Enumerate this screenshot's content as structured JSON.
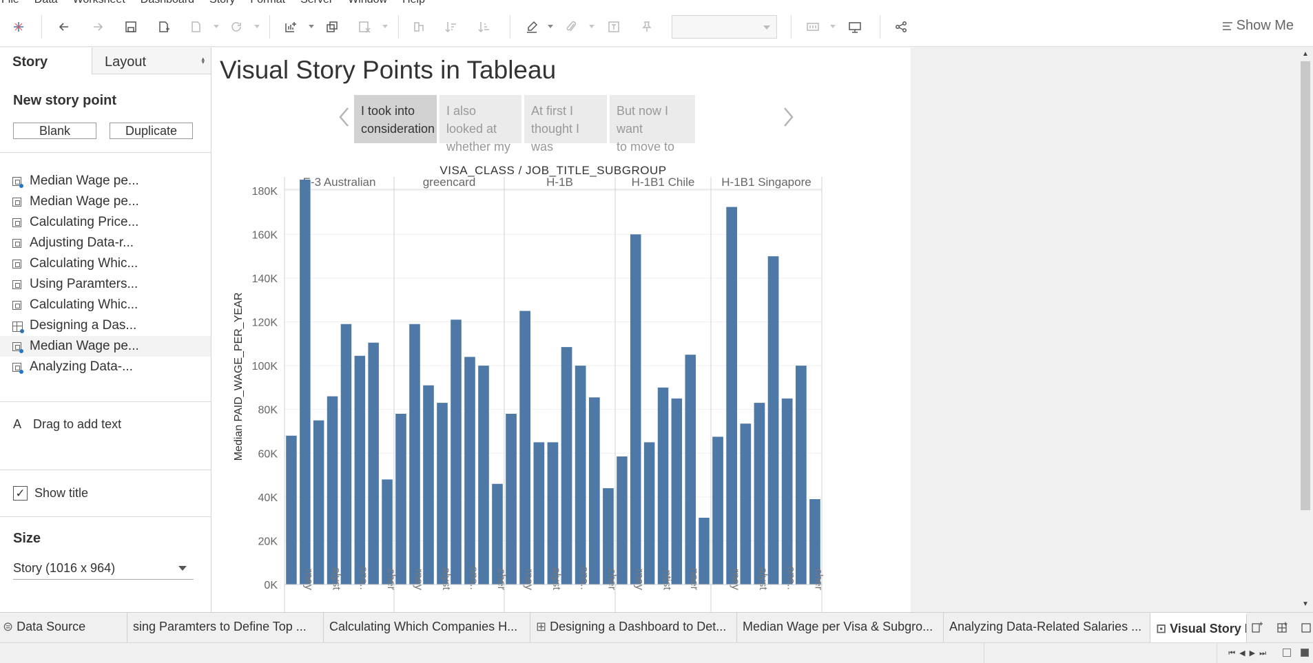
{
  "menu": {
    "items": [
      "File",
      "Data",
      "Worksheet",
      "Dashboard",
      "Story",
      "Format",
      "Server",
      "Window",
      "Help"
    ]
  },
  "toolbar": {
    "show_me_label": "Show Me",
    "icons": [
      "tableau-logo-icon",
      "undo-icon",
      "redo-icon",
      "save-icon",
      "new-data-source-icon",
      "pause-auto-updates-icon",
      "refresh-icon",
      "new-worksheet-icon",
      "duplicate-sheet-icon",
      "clear-sheet-icon",
      "swap-icon",
      "sort-ascending-icon",
      "sort-descending-icon",
      "highlight-icon",
      "group-icon",
      "labels-icon",
      "pin-icon",
      "fit-icon",
      "presentation-icon",
      "share-icon"
    ]
  },
  "left_panel": {
    "tabs": {
      "story": "Story",
      "layout": "Layout"
    },
    "new_story_point": "New story point",
    "blank_button": "Blank",
    "duplicate_button": "Duplicate",
    "story_points": [
      {
        "label": "Median Wage pe...",
        "icon": "dashboard-icon",
        "badge": true
      },
      {
        "label": "Median Wage pe...",
        "icon": "sheet-icon",
        "badge": false
      },
      {
        "label": "Calculating Price...",
        "icon": "sheet-icon",
        "badge": false
      },
      {
        "label": "Adjusting Data-r...",
        "icon": "sheet-icon",
        "badge": false
      },
      {
        "label": "Calculating Whic...",
        "icon": "sheet-icon",
        "badge": false
      },
      {
        "label": "Using Paramters...",
        "icon": "sheet-icon",
        "badge": false
      },
      {
        "label": "Calculating Whic...",
        "icon": "sheet-icon",
        "badge": false
      },
      {
        "label": "Designing a Das...",
        "icon": "dashboard-grid-icon",
        "badge": true
      },
      {
        "label": "Median Wage pe...",
        "icon": "sheet-icon",
        "badge": true
      },
      {
        "label": "Analyzing Data-...",
        "icon": "sheet-icon",
        "badge": true
      }
    ],
    "drag_text": "Drag to add text",
    "drag_text_icon": "A",
    "show_title_label": "Show title",
    "show_title_checked": true,
    "size_label": "Size",
    "size_value": "Story (1016 x 964)"
  },
  "story": {
    "title": "Visual Story Points in Tableau",
    "points": [
      {
        "text": "I took into consideration",
        "line1": "I took into",
        "line2": "consideration",
        "active": true
      },
      {
        "text": "I also looked at whether my",
        "line1": "I also looked at",
        "line2": "whether my",
        "active": false
      },
      {
        "text": "At first I thought I was",
        "line1": "At first I",
        "line2": "thought I was",
        "active": false
      },
      {
        "text": "But now I want to move to",
        "line1": "But now I want",
        "line2": "to move to",
        "active": false
      }
    ]
  },
  "chart_data": {
    "type": "bar",
    "title": "VISA_CLASS / JOB_TITLE_SUBGROUP",
    "ylabel": "Median PAID_WAGE_PER_YEAR",
    "ylim": [
      0,
      190000
    ],
    "yticks": [
      "0K",
      "20K",
      "40K",
      "60K",
      "80K",
      "100K",
      "120K",
      "140K",
      "160K",
      "180K"
    ],
    "bar_color": "#4e79a7",
    "panels": [
      {
        "name": "E-3 Australian",
        "values": [
          68000,
          185000,
          75000,
          86000,
          119000,
          104500,
          110500,
          48000
        ],
        "x_labels": [
          {
            "text": "rney",
            "bar": 1
          },
          {
            "text": "alyst",
            "bar": 3
          },
          {
            "text": "ons..",
            "bar": 5
          },
          {
            "text": "cher",
            "bar": 7
          }
        ]
      },
      {
        "name": "greencard",
        "values": [
          78000,
          119000,
          91000,
          83000,
          121000,
          104000,
          100000,
          46000
        ],
        "x_labels": [
          {
            "text": "rney",
            "bar": 1
          },
          {
            "text": "alyst",
            "bar": 3
          },
          {
            "text": "ons..",
            "bar": 5
          },
          {
            "text": "cher",
            "bar": 7
          }
        ]
      },
      {
        "name": "H-1B",
        "values": [
          78000,
          125000,
          65000,
          65000,
          108500,
          100000,
          85500,
          44000
        ],
        "x_labels": [
          {
            "text": "rney",
            "bar": 1
          },
          {
            "text": "alyst",
            "bar": 3
          },
          {
            "text": "ons..",
            "bar": 5
          },
          {
            "text": "cher",
            "bar": 7
          }
        ]
      },
      {
        "name": "H-1B1 Chile",
        "values": [
          58500,
          160000,
          65000,
          90000,
          85000,
          105000,
          30500
        ],
        "x_labels": [
          {
            "text": "rney",
            "bar": 1
          },
          {
            "text": "ntist",
            "bar": 3
          },
          {
            "text": "neer",
            "bar": 5
          }
        ]
      },
      {
        "name": "H-1B1 Singapore",
        "values": [
          67500,
          172500,
          73500,
          83000,
          150000,
          85000,
          100000,
          39000
        ],
        "x_labels": [
          {
            "text": "rney",
            "bar": 1
          },
          {
            "text": "alyst",
            "bar": 3
          },
          {
            "text": "ons..",
            "bar": 5
          },
          {
            "text": "cher",
            "bar": 7
          }
        ]
      }
    ]
  },
  "sheet_tabs": {
    "data_source": "Data Source",
    "tabs": [
      "sing Paramters to Define Top ...",
      "Calculating Which Companies H...",
      "Designing a Dashboard to Det...",
      "Median Wage per Visa & Subgro...",
      "Analyzing Data-Related Salaries ...",
      "Visual Story P"
    ],
    "active_index": 5
  }
}
